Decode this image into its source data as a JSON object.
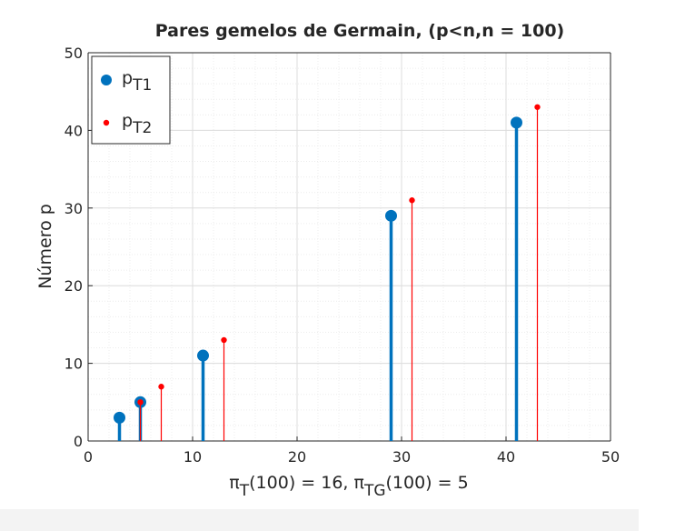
{
  "chart_data": {
    "type": "stem",
    "title": "Pares gemelos de Germain, (p<n,n = 100)",
    "xlabel": {
      "parts": [
        {
          "text": "π",
          "sub": false
        },
        {
          "text": "T",
          "sub": true
        },
        {
          "text": "(100) = 16,  π",
          "sub": false
        },
        {
          "text": "TG",
          "sub": true
        },
        {
          "text": "(100) = 5",
          "sub": false
        }
      ]
    },
    "ylabel": "Número p",
    "xlim": [
      0,
      50
    ],
    "ylim": [
      0,
      50
    ],
    "xticks": [
      0,
      10,
      20,
      30,
      40,
      50
    ],
    "yticks": [
      0,
      10,
      20,
      30,
      40,
      50
    ],
    "grid": true,
    "minor_grid": true,
    "legend_placement": "top-left",
    "series": [
      {
        "name": "p",
        "name_sub": "T1",
        "color": "#0072bd",
        "x": [
          3,
          5,
          11,
          29,
          41
        ],
        "y": [
          3,
          5,
          11,
          29,
          41
        ]
      },
      {
        "name": "p",
        "name_sub": "T2",
        "color": "#ff0000",
        "x": [
          5,
          7,
          13,
          31,
          43
        ],
        "y": [
          5,
          7,
          13,
          31,
          43
        ]
      }
    ]
  }
}
